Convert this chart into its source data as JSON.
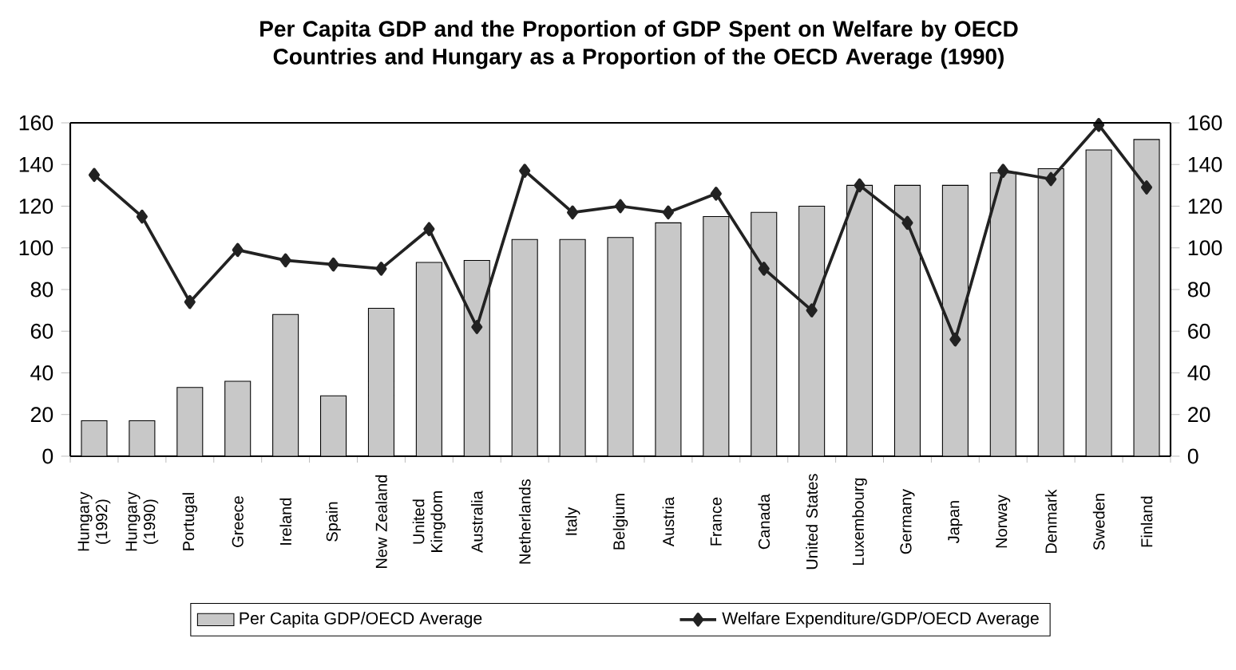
{
  "chart_data": {
    "type": "bar",
    "title": "Per Capita GDP and the Proportion of GDP Spent on Welfare by OECD Countries and Hungary as a Proportion of the OECD Average (1990)",
    "categories": [
      "Hungary (1992)",
      "Hungary (1990)",
      "Portugal",
      "Greece",
      "Ireland",
      "Spain",
      "New Zealand",
      "United Kingdom",
      "Australia",
      "Netherlands",
      "Italy",
      "Belgium",
      "Austria",
      "France",
      "Canada",
      "United States",
      "Luxembourg",
      "Germany",
      "Japan",
      "Norway",
      "Denmark",
      "Sweden",
      "Finland"
    ],
    "series": [
      {
        "name": "Per Capita GDP/OECD Average",
        "color": "#c8c8c8",
        "values": [
          17,
          17,
          33,
          36,
          68,
          29,
          71,
          93,
          94,
          104,
          104,
          105,
          112,
          115,
          117,
          120,
          130,
          130,
          130,
          136,
          138,
          147,
          152
        ]
      },
      {
        "name": "Welfare Expenditure/GDP/OECD Average",
        "type": "line",
        "color": "#222222",
        "marker": "diamond",
        "values": [
          135,
          115,
          74,
          99,
          94,
          92,
          90,
          109,
          62,
          137,
          117,
          120,
          117,
          126,
          90,
          70,
          130,
          112,
          56,
          137,
          133,
          159,
          129
        ]
      }
    ],
    "ylim": [
      0,
      160
    ],
    "yticks": [
      0,
      20,
      40,
      60,
      80,
      100,
      120,
      140,
      160
    ],
    "y2lim": [
      0,
      160
    ],
    "y2ticks": [
      0,
      20,
      40,
      60,
      80,
      100,
      120,
      140,
      160
    ],
    "legend": "bottom",
    "grid": false
  }
}
